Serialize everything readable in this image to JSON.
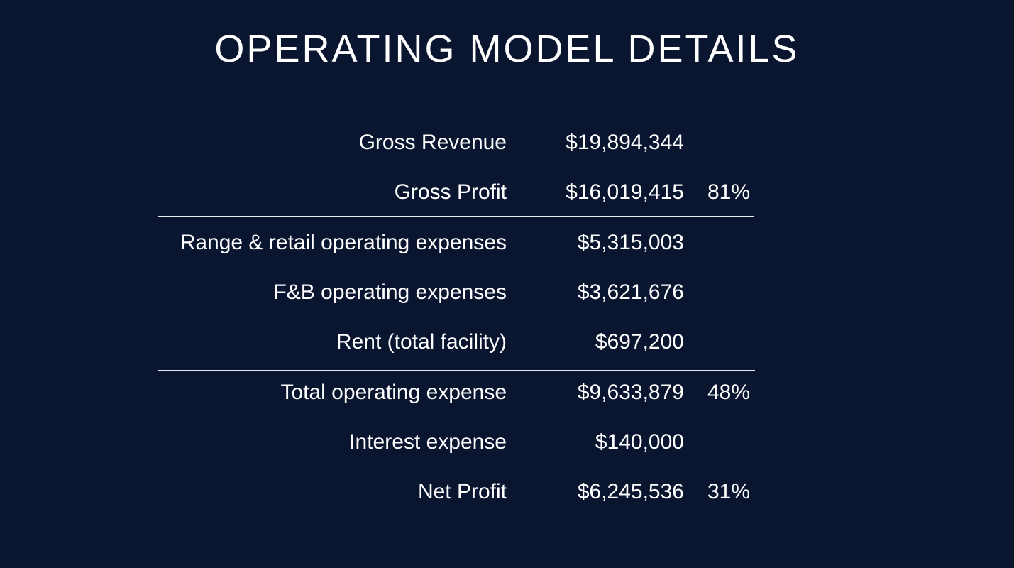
{
  "slide": {
    "title": "OPERATING MODEL DETAILS"
  },
  "rows": [
    {
      "label": "Gross Revenue",
      "value": "$19,894,344",
      "percent": ""
    },
    {
      "label": "Gross Profit",
      "value": "$16,019,415",
      "percent": "81%"
    },
    {
      "label": "Range & retail operating expenses",
      "value": "$5,315,003",
      "percent": ""
    },
    {
      "label": "F&B operating expenses",
      "value": "$3,621,676",
      "percent": ""
    },
    {
      "label": "Rent (total facility)",
      "value": "$697,200",
      "percent": ""
    },
    {
      "label": "Total operating expense",
      "value": "$9,633,879",
      "percent": "48%"
    },
    {
      "label": "Interest expense",
      "value": "$140,000",
      "percent": ""
    },
    {
      "label": "Net Profit",
      "value": "$6,245,536",
      "percent": "31%"
    }
  ],
  "colors": {
    "background": "#0a1530",
    "text": "#ffffff",
    "divider": "#e8ecf4"
  }
}
